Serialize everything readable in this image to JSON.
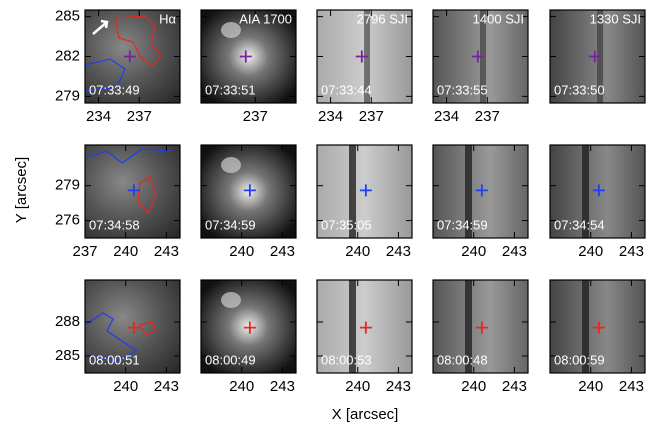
{
  "x_label": "X [arcsec]",
  "y_label": "Y [arcsec]",
  "chart_data": [
    {
      "type": "image",
      "title": "Hα",
      "annotation": "07:33:49",
      "xlim": [
        233,
        240
      ],
      "ylim": [
        278.5,
        285.5
      ],
      "xticks": [
        234,
        237
      ],
      "yticks": [
        279,
        282,
        285
      ],
      "marker": {
        "x": 236.3,
        "y": 282,
        "color": "#7a1fa2"
      }
    },
    {
      "type": "image",
      "title": "AIA 1700",
      "annotation": "07:33:51",
      "xlim": [
        233,
        240
      ],
      "ylim": [
        278.5,
        285.5
      ],
      "xticks": [
        237
      ],
      "yticks": [
        279,
        282,
        285
      ],
      "marker": {
        "x": 236.3,
        "y": 282,
        "color": "#7a1fa2"
      }
    },
    {
      "type": "image",
      "title": "2796 SJI",
      "annotation": "07:33:44",
      "xlim": [
        233,
        240
      ],
      "ylim": [
        278.5,
        285.5
      ],
      "xticks": [
        234,
        237
      ],
      "yticks": [
        279,
        282,
        285
      ],
      "marker": {
        "x": 236.3,
        "y": 282,
        "color": "#7a1fa2"
      }
    },
    {
      "type": "image",
      "title": "1400 SJI",
      "annotation": "07:33:55",
      "xlim": [
        233,
        240
      ],
      "ylim": [
        278.5,
        285.5
      ],
      "xticks": [
        234,
        237
      ],
      "yticks": [
        279,
        282,
        285
      ],
      "marker": {
        "x": 236.3,
        "y": 282,
        "color": "#7a1fa2"
      }
    },
    {
      "type": "image",
      "title": "1330 SJI",
      "annotation": "07:33:50",
      "xlim": [
        233,
        240
      ],
      "ylim": [
        278.5,
        285.5
      ],
      "xticks": [],
      "yticks": [
        279,
        282,
        285
      ],
      "marker": {
        "x": 236.3,
        "y": 282,
        "color": "#7a1fa2"
      }
    },
    {
      "type": "image",
      "annotation": "07:34:58",
      "xlim": [
        237,
        244
      ],
      "ylim": [
        274.5,
        282.5
      ],
      "xticks": [
        237,
        240,
        243
      ],
      "yticks": [
        276,
        279
      ],
      "marker": {
        "x": 240.6,
        "y": 278.6,
        "color": "#1f3ff0"
      }
    },
    {
      "type": "image",
      "annotation": "07:34:59",
      "xlim": [
        237,
        244
      ],
      "ylim": [
        274.5,
        282.5
      ],
      "xticks": [
        240,
        243
      ],
      "yticks": [
        276,
        279
      ],
      "marker": {
        "x": 240.6,
        "y": 278.6,
        "color": "#1f3ff0"
      }
    },
    {
      "type": "image",
      "annotation": "07:35:05",
      "xlim": [
        237,
        244
      ],
      "ylim": [
        274.5,
        282.5
      ],
      "xticks": [
        240,
        243
      ],
      "yticks": [
        276,
        279
      ],
      "marker": {
        "x": 240.6,
        "y": 278.6,
        "color": "#1f3ff0"
      }
    },
    {
      "type": "image",
      "annotation": "07:34:59",
      "xlim": [
        237,
        244
      ],
      "ylim": [
        274.5,
        282.5
      ],
      "xticks": [
        240,
        243
      ],
      "yticks": [
        276,
        279
      ],
      "marker": {
        "x": 240.6,
        "y": 278.6,
        "color": "#1f3ff0"
      }
    },
    {
      "type": "image",
      "annotation": "07:34:54",
      "xlim": [
        237,
        244
      ],
      "ylim": [
        274.5,
        282.5
      ],
      "xticks": [
        240,
        243
      ],
      "yticks": [
        276,
        279
      ],
      "marker": {
        "x": 240.6,
        "y": 278.6,
        "color": "#1f3ff0"
      }
    },
    {
      "type": "image",
      "annotation": "08:00:51",
      "xlim": [
        237,
        244
      ],
      "ylim": [
        283.5,
        291.7
      ],
      "xticks": [
        240,
        243
      ],
      "yticks": [
        285,
        288
      ],
      "marker": {
        "x": 240.6,
        "y": 287.5,
        "color": "#e8261f"
      }
    },
    {
      "type": "image",
      "annotation": "08:00:49",
      "xlim": [
        237,
        244
      ],
      "ylim": [
        283.5,
        291.7
      ],
      "xticks": [
        240,
        243
      ],
      "yticks": [
        285,
        288
      ],
      "marker": {
        "x": 240.6,
        "y": 287.5,
        "color": "#e8261f"
      }
    },
    {
      "type": "image",
      "annotation": "08:00:53",
      "xlim": [
        237,
        244
      ],
      "ylim": [
        283.5,
        291.7
      ],
      "xticks": [
        240,
        243
      ],
      "yticks": [
        285,
        288
      ],
      "marker": {
        "x": 240.6,
        "y": 287.5,
        "color": "#e8261f"
      }
    },
    {
      "type": "image",
      "annotation": "08:00:48",
      "xlim": [
        237,
        244
      ],
      "ylim": [
        283.5,
        291.7
      ],
      "xticks": [
        240,
        243
      ],
      "yticks": [
        285,
        288
      ],
      "marker": {
        "x": 240.6,
        "y": 287.5,
        "color": "#e8261f"
      }
    },
    {
      "type": "image",
      "annotation": "08:00:59",
      "xlim": [
        237,
        244
      ],
      "ylim": [
        283.5,
        291.7
      ],
      "xticks": [
        240,
        243
      ],
      "yticks": [
        285,
        288
      ],
      "marker": {
        "x": 240.6,
        "y": 287.5,
        "color": "#e8261f"
      }
    }
  ]
}
